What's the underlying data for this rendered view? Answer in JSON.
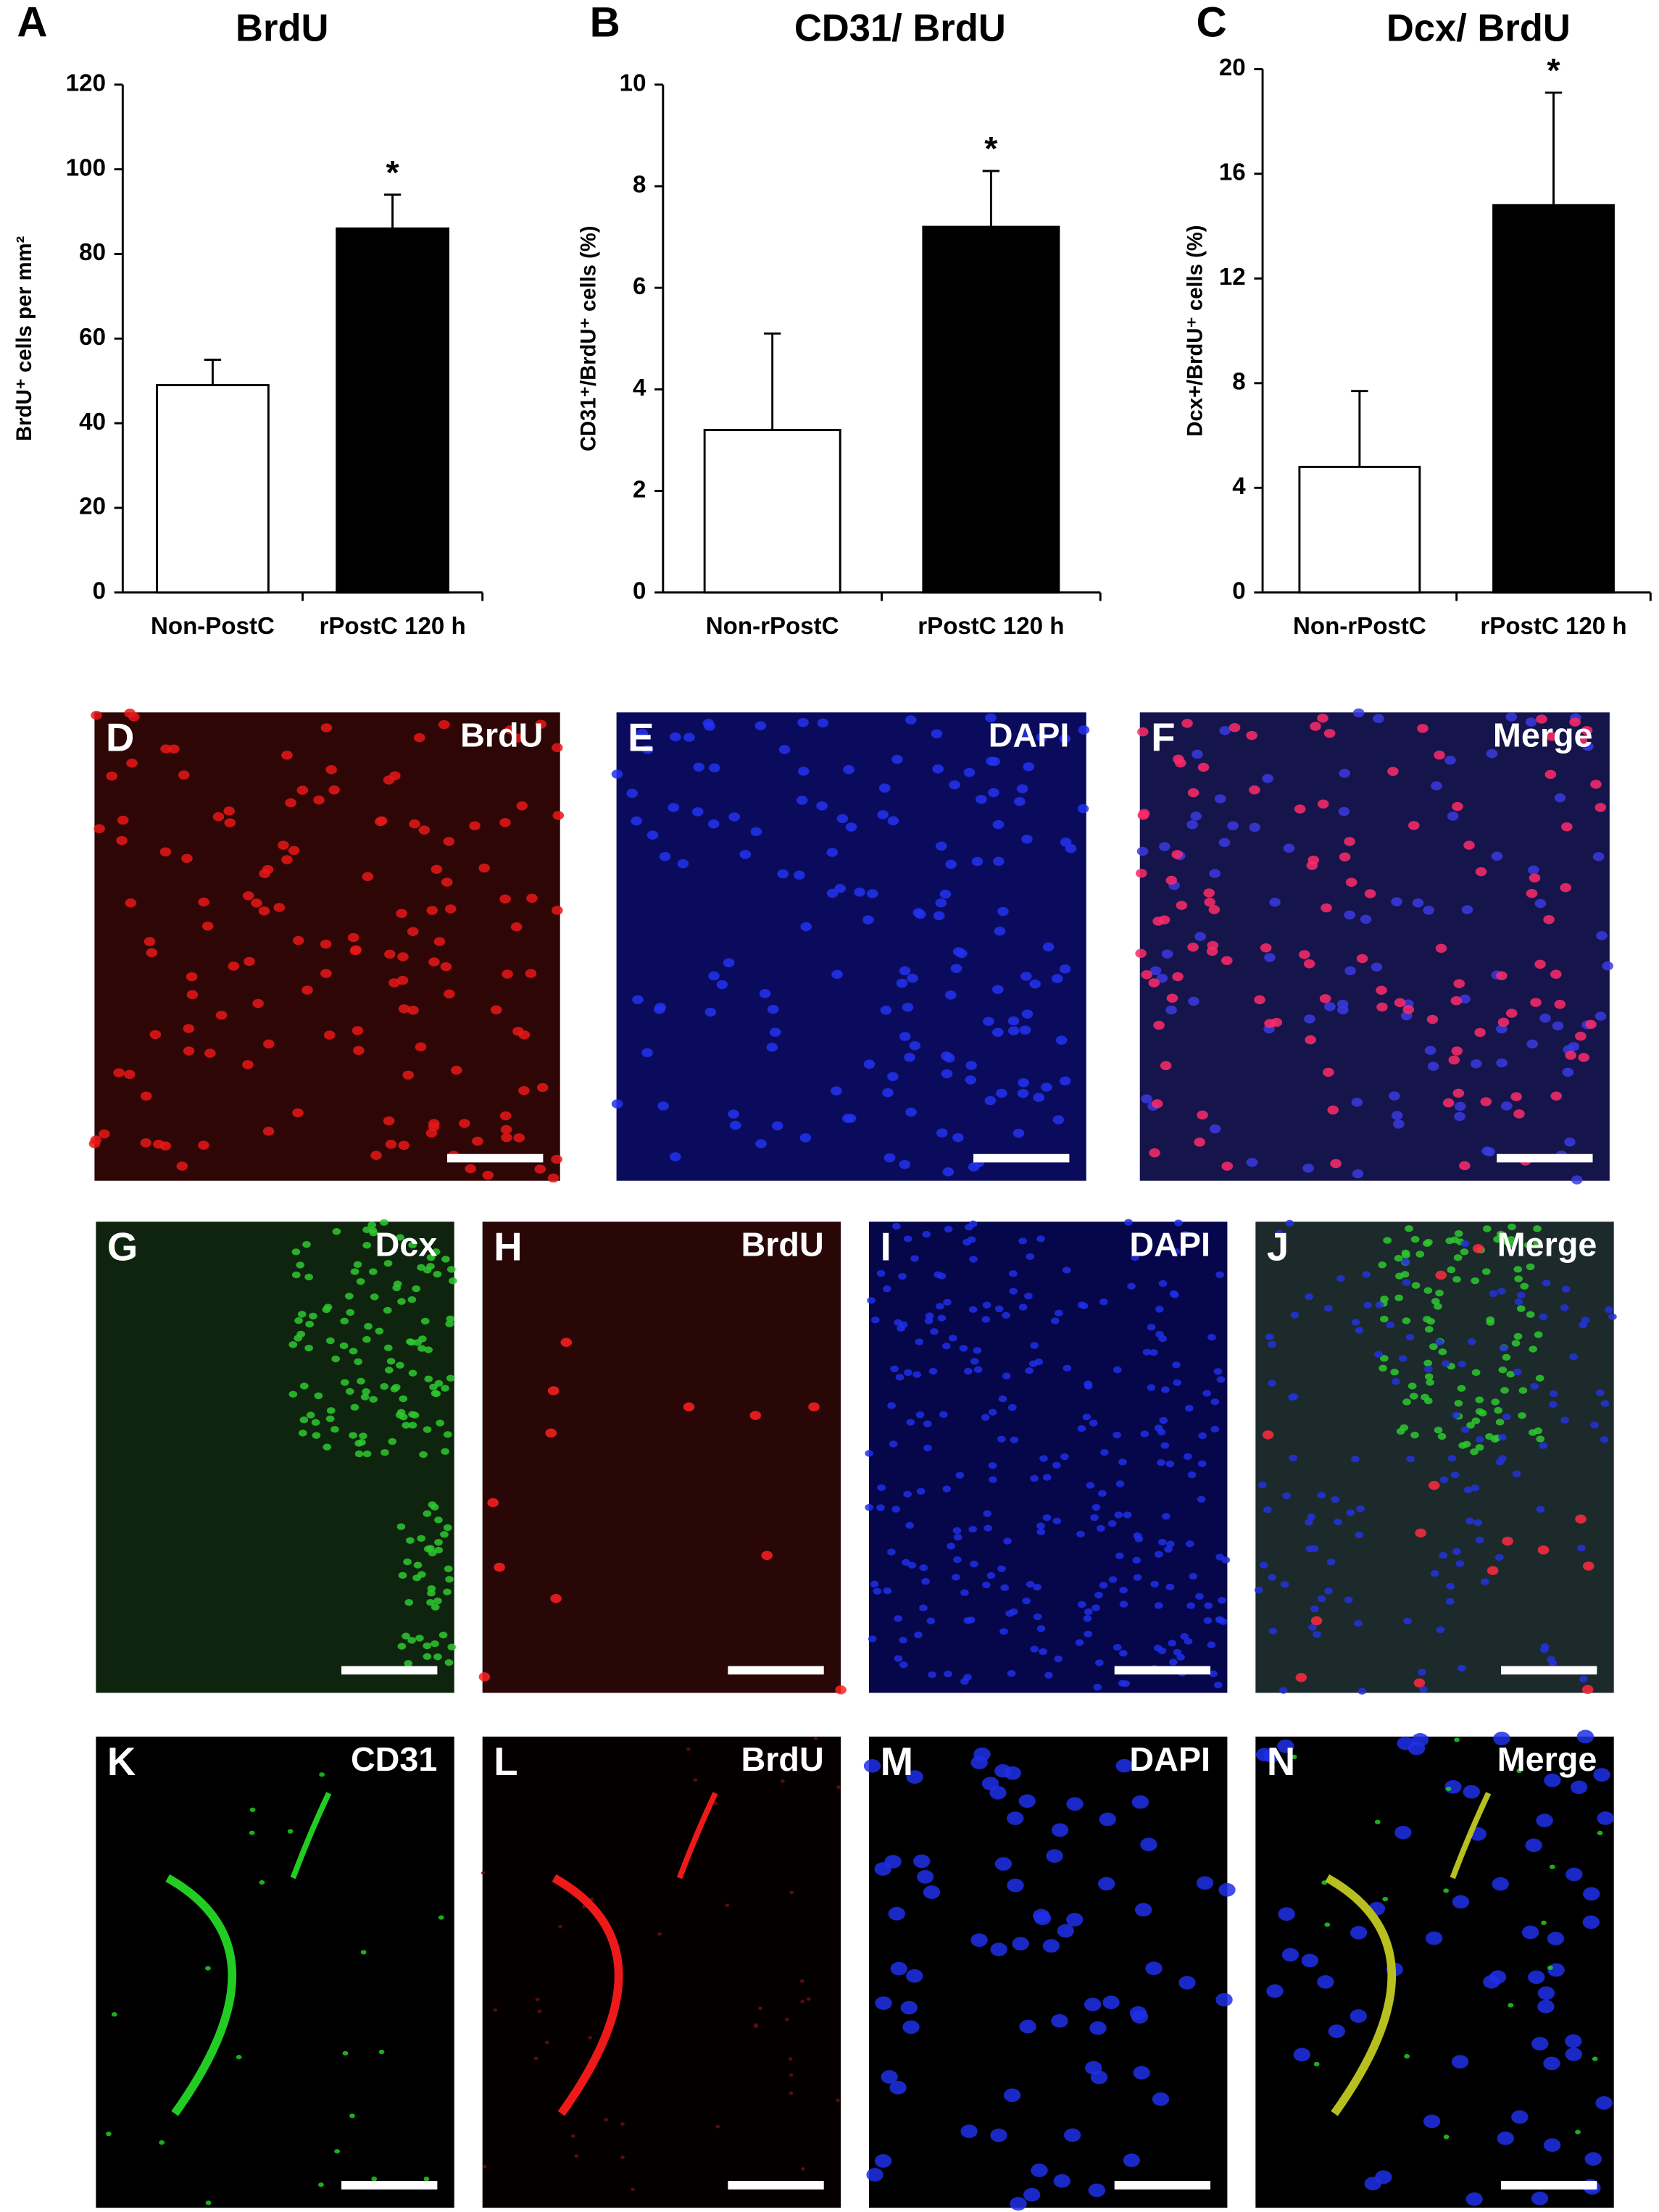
{
  "chart_data": [
    {
      "type": "bar",
      "panel_label": "A",
      "title": "BrdU",
      "y_label": "BrdU⁺ cells per mm²",
      "categories": [
        "Non-PostC",
        "rPostC 120 h"
      ],
      "values": [
        49,
        86
      ],
      "errors": [
        6,
        8
      ],
      "colors": [
        "#ffffff",
        "#000000"
      ],
      "value_annotations": [
        null,
        "*"
      ],
      "ylim": [
        0,
        120
      ],
      "yticks": [
        0,
        20,
        40,
        60,
        80,
        100,
        120
      ]
    },
    {
      "type": "bar",
      "panel_label": "B",
      "title": "CD31/ BrdU",
      "y_label": "CD31⁺/BrdU⁺ cells (%)",
      "categories": [
        "Non-rPostC",
        "rPostC 120 h"
      ],
      "values": [
        3.2,
        7.2
      ],
      "errors": [
        1.9,
        1.1
      ],
      "colors": [
        "#ffffff",
        "#000000"
      ],
      "value_annotations": [
        null,
        "*"
      ],
      "ylim": [
        0,
        10
      ],
      "yticks": [
        0,
        2,
        4,
        6,
        8,
        10
      ]
    },
    {
      "type": "bar",
      "panel_label": "C",
      "title": "Dcx/ BrdU",
      "y_label": "Dcx+/BrdU⁺ cells (%)",
      "categories": [
        "Non-rPostC",
        "rPostC 120 h"
      ],
      "values": [
        4.8,
        14.8
      ],
      "errors": [
        2.9,
        4.3
      ],
      "colors": [
        "#ffffff",
        "#000000"
      ],
      "value_annotations": [
        null,
        "*"
      ],
      "ylim": [
        0,
        20
      ],
      "yticks": [
        0,
        4,
        8,
        12,
        16,
        20
      ]
    }
  ],
  "panels": [
    {
      "letter": "D",
      "stain": "BrdU"
    },
    {
      "letter": "E",
      "stain": "DAPI"
    },
    {
      "letter": "F",
      "stain": "Merge"
    },
    {
      "letter": "G",
      "stain": "Dcx"
    },
    {
      "letter": "H",
      "stain": "BrdU"
    },
    {
      "letter": "I",
      "stain": "DAPI"
    },
    {
      "letter": "J",
      "stain": "Merge"
    },
    {
      "letter": "K",
      "stain": "CD31"
    },
    {
      "letter": "L",
      "stain": "BrdU"
    },
    {
      "letter": "M",
      "stain": "DAPI"
    },
    {
      "letter": "N",
      "stain": "Merge"
    }
  ]
}
